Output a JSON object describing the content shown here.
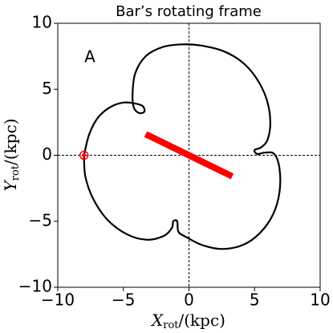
{
  "chart_data": {
    "type": "line",
    "title": "Bar’s rotating frame",
    "annotation": "A",
    "xlabel": {
      "symbol": "X",
      "subscript": "rot",
      "unit": "/(kpc)"
    },
    "ylabel": {
      "symbol": "Y",
      "subscript": "rot",
      "unit": "/(kpc)"
    },
    "xlim": [
      -10,
      10
    ],
    "ylim": [
      -10,
      10
    ],
    "xticks": [
      {
        "value": -10,
        "label": "−10"
      },
      {
        "value": -5,
        "label": "−5"
      },
      0,
      5,
      10
    ],
    "yticks": [
      {
        "value": -10,
        "label": "−10"
      },
      {
        "value": -5,
        "label": "−5"
      },
      0,
      5,
      10
    ],
    "zero_lines": true,
    "series": [
      {
        "color": "#000000",
        "width": 2.2,
        "x": [
          -8,
          -7.6,
          -6.9,
          -5.9,
          -4.9,
          -4.0,
          -3.5,
          -3.4,
          -3.8,
          -4.2,
          -4.3,
          -4.1,
          -3.3,
          -2.0,
          -0.5,
          1.0,
          2.6,
          4.0,
          5.1,
          5.9,
          6.2,
          6.0,
          5.5,
          5.0,
          5.2,
          5.8,
          6.5,
          6.9,
          6.9,
          6.4,
          5.4,
          4.1,
          2.5,
          1.0,
          -0.2,
          -0.8,
          -0.9,
          -1.2,
          -1.3,
          -1.9,
          -3.2,
          -4.7,
          -6.2,
          -7.3,
          -7.9,
          -8
        ],
        "y": [
          0,
          1.6,
          2.9,
          3.7,
          4.0,
          3.9,
          3.7,
          3.3,
          3.2,
          3.6,
          4.6,
          6.2,
          7.5,
          8.2,
          8.4,
          8.3,
          7.9,
          7.1,
          5.9,
          4.3,
          2.6,
          1.2,
          0.6,
          0.4,
          0.1,
          0.2,
          0.1,
          -1.0,
          -2.8,
          -4.5,
          -5.9,
          -6.8,
          -7.1,
          -6.8,
          -6.2,
          -5.8,
          -5.0,
          -5.0,
          -5.5,
          -6.1,
          -6.4,
          -6.0,
          -4.9,
          -3.3,
          -1.6,
          0
        ]
      },
      {
        "color": "#ff0000",
        "width": 8,
        "x": [
          -3.3,
          3.3
        ],
        "y": [
          1.6,
          -1.6
        ]
      }
    ],
    "marker": {
      "x": -8,
      "y": 0,
      "color": "#ff0000"
    }
  }
}
